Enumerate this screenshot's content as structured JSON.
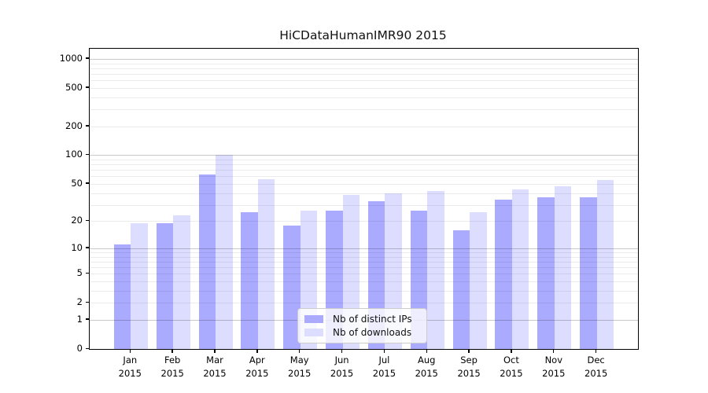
{
  "figure": {
    "title": "HiCDataHumanIMR90 2015"
  },
  "chart_data": {
    "type": "bar",
    "title": "HiCDataHumanIMR90 2015",
    "categories": [
      {
        "month": "Jan",
        "year": "2015"
      },
      {
        "month": "Feb",
        "year": "2015"
      },
      {
        "month": "Mar",
        "year": "2015"
      },
      {
        "month": "Apr",
        "year": "2015"
      },
      {
        "month": "May",
        "year": "2015"
      },
      {
        "month": "Jun",
        "year": "2015"
      },
      {
        "month": "Jul",
        "year": "2015"
      },
      {
        "month": "Aug",
        "year": "2015"
      },
      {
        "month": "Sep",
        "year": "2015"
      },
      {
        "month": "Oct",
        "year": "2015"
      },
      {
        "month": "Nov",
        "year": "2015"
      },
      {
        "month": "Dec",
        "year": "2015"
      }
    ],
    "series": [
      {
        "name": "Nb of distinct IPs",
        "color": "#aaaaff",
        "values": [
          11,
          19,
          63,
          25,
          18,
          26,
          33,
          26,
          16,
          34,
          36,
          36
        ]
      },
      {
        "name": "Nb of downloads",
        "color": "#ddddff",
        "values": [
          19,
          23,
          100,
          56,
          26,
          38,
          40,
          42,
          25,
          44,
          47,
          55
        ]
      }
    ],
    "xlabel": "",
    "ylabel": "",
    "y_axis": {
      "scale": "log1p",
      "tick_values": [
        0,
        1,
        2,
        5,
        10,
        20,
        50,
        100,
        200,
        500,
        1000
      ],
      "major_gridlines": [
        1,
        10,
        100,
        1000
      ],
      "minor_gridlines": [
        2,
        3,
        4,
        5,
        6,
        7,
        8,
        9,
        20,
        30,
        40,
        50,
        60,
        70,
        80,
        90,
        200,
        300,
        400,
        500,
        600,
        700,
        800,
        900
      ],
      "ylim": [
        0,
        1230
      ],
      "grid": true
    },
    "legend": {
      "position": "lower-center",
      "entries": [
        "Nb of distinct IPs",
        "Nb of downloads"
      ]
    }
  }
}
